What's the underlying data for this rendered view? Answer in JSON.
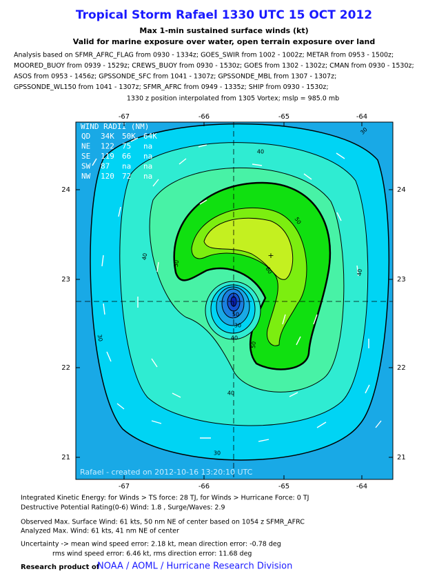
{
  "header": {
    "title": "Tropical Storm Rafael 1330 UTC 15 OCT 2012",
    "subtitle": "Max 1-min sustained surface winds (kt)",
    "subtitle2": "Valid for marine exposure over water, open terrain exposure over land",
    "analysis": [
      "Analysis based on SFMR_AFRC_FLAG from 0930 - 1334z; GOES_SWIR from 1002 - 1002z; METAR from 0953 - 1500z;",
      "MOORED_BUOY from 0939 - 1529z; CREWS_BUOY from 0930 - 1530z; GOES from 1302 - 1302z; CMAN from 0930 - 1530z;",
      "ASOS from 0953 - 1456z; GPSSONDE_SFC from 1041 - 1307z; GPSSONDE_MBL from 1307 - 1307z;",
      "GPSSONDE_WL150 from 1041 - 1307z; SFMR_AFRC from 0949 - 1335z; SHIP from 0930 - 1530z;"
    ],
    "position": "1330 z position interpolated from 1305 Vortex; mslp = 985.0 mb"
  },
  "map": {
    "lon_labels": [
      "-67",
      "-66",
      "-65",
      "-64"
    ],
    "lat_labels": [
      "24",
      "23",
      "22",
      "21"
    ],
    "wind_radii": {
      "title": "WIND RADII (NM)",
      "rows": [
        [
          "QD",
          "34K",
          "50K",
          "64K"
        ],
        [
          "NE",
          "122",
          "75",
          "na"
        ],
        [
          "SE",
          "119",
          "66",
          "na"
        ],
        [
          "SW",
          "87",
          "na",
          "na"
        ],
        [
          "NW",
          "120",
          "72",
          "na"
        ]
      ]
    },
    "contour_labels": [
      "30",
      "40",
      "30",
      "40",
      "50",
      "50",
      "60",
      "40",
      "40",
      "30",
      "50",
      "40",
      "30",
      "50"
    ],
    "credit": "Rafael - created on 2012-10-16 13:20:10 UTC"
  },
  "footer": {
    "lines": [
      "Integrated Kinetic Energy: for Winds > TS force: 28 TJ, for Winds > Hurricane Force: 0 TJ",
      "Destructive Potential Rating(0-6)  Wind: 1.8 , Surge/Waves: 2.9",
      "Observed Max. Surface Wind: 61 kts, 50 nm NE of center based on 1054 z SFMR_AFRC",
      "Analyzed Max. Wind: 61 kts, 41 nm  NE of center",
      "Uncertainty -> mean wind speed error: 2.18 kt, mean direction error:  -0.78 deg",
      "rms wind speed error: 6.46 kt, rms direction error: 11.68 deg"
    ],
    "research": "Research product of",
    "link": "NOAA / AOML / Hurricane Research Division"
  }
}
